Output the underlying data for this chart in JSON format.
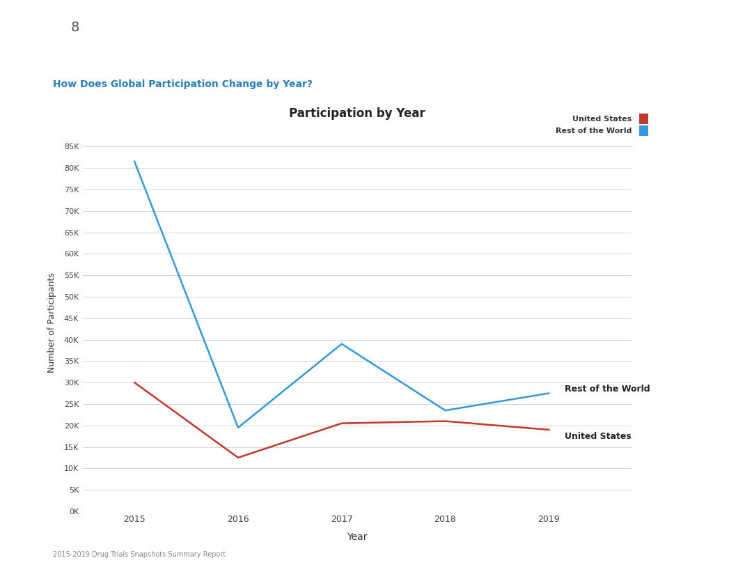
{
  "title": "Participation by Year",
  "subtitle": "How Does Global Participation Change by Year?",
  "xlabel": "Year",
  "ylabel": "Number of Participants",
  "footer": "2015-2019 Drug Trials Snapshots Summary Report",
  "page_number": "8",
  "years": [
    2015,
    2016,
    2017,
    2018,
    2019
  ],
  "us_values": [
    30000,
    12500,
    20500,
    21000,
    19000
  ],
  "world_values": [
    81500,
    19500,
    39000,
    23500,
    27500
  ],
  "us_color": "#c0392b",
  "world_color": "#3498db",
  "us_label": "United States",
  "world_label": "Rest of the World",
  "yticks": [
    0,
    5000,
    10000,
    15000,
    20000,
    25000,
    30000,
    35000,
    40000,
    45000,
    50000,
    55000,
    60000,
    65000,
    70000,
    75000,
    80000,
    85000
  ],
  "ylim": [
    0,
    88000
  ],
  "header_color": "#3498db",
  "subtitle_color": "#2980b9",
  "background_color": "#ffffff",
  "grid_color": "#d5d5d5",
  "annotation_fontsize": 9,
  "title_fontsize": 12,
  "axis_label_fontsize": 9,
  "tick_fontsize": 8,
  "legend_fontsize": 8
}
